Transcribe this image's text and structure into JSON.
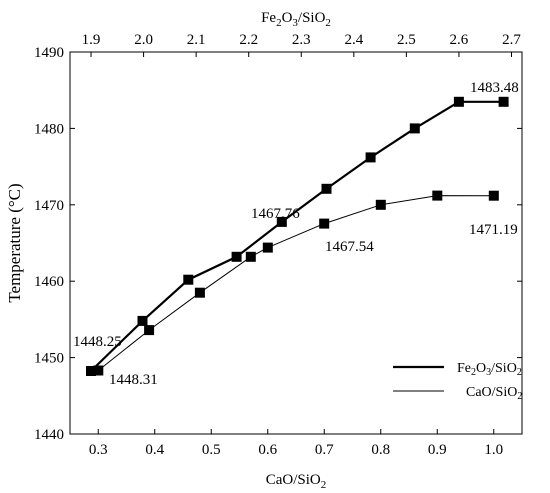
{
  "chart_data": {
    "type": "line",
    "title": "",
    "xlabel_bottom": "CaO/SiO2",
    "xlabel_top": "Fe2O3/SiO2",
    "ylabel": "Temperature (°C)",
    "x_bottom_lim": [
      0.25,
      1.05
    ],
    "x_top_lim": [
      1.86,
      2.72
    ],
    "ylim": [
      1440,
      1490
    ],
    "x_bottom_ticks": [
      0.3,
      0.4,
      0.5,
      0.6,
      0.7,
      0.8,
      0.9,
      1.0
    ],
    "x_bottom_tick_labels": [
      "0.3",
      "0.4",
      "0.5",
      "0.6",
      "0.7",
      "0.8",
      "0.9",
      "1.0"
    ],
    "x_top_ticks": [
      1.9,
      2.0,
      2.1,
      2.2,
      2.3,
      2.4,
      2.5,
      2.6,
      2.7
    ],
    "x_top_tick_labels": [
      "1.9",
      "2.0",
      "2.1",
      "2.2",
      "2.3",
      "2.4",
      "2.5",
      "2.6",
      "2.7"
    ],
    "y_ticks": [
      1440,
      1450,
      1460,
      1470,
      1480,
      1490
    ],
    "y_tick_labels": [
      "1440",
      "1450",
      "1460",
      "1470",
      "1480",
      "1490"
    ],
    "grid": false,
    "legend_position": "bottom-right",
    "series": [
      {
        "name": "Fe2O3/SiO2",
        "axis": "top",
        "line": "thick",
        "x": [
          1.9,
          1.998,
          2.085,
          2.177,
          2.263,
          2.348,
          2.432,
          2.516,
          2.6,
          2.685
        ],
        "y": [
          1448.25,
          1454.8,
          1460.2,
          1463.2,
          1467.76,
          1472.1,
          1476.2,
          1480.0,
          1483.48,
          1483.48
        ]
      },
      {
        "name": "CaO/SiO2",
        "axis": "bottom",
        "line": "thin",
        "x": [
          0.3,
          0.39,
          0.48,
          0.57,
          0.6,
          0.7,
          0.8,
          0.9,
          1.0
        ],
        "y": [
          1448.31,
          1453.6,
          1458.5,
          1463.2,
          1464.4,
          1467.54,
          1470.0,
          1471.2,
          1471.19
        ]
      }
    ],
    "annotations": [
      "1448.25",
      "1448.31",
      "1467.76",
      "1467.54",
      "1483.48",
      "1471.19"
    ]
  }
}
